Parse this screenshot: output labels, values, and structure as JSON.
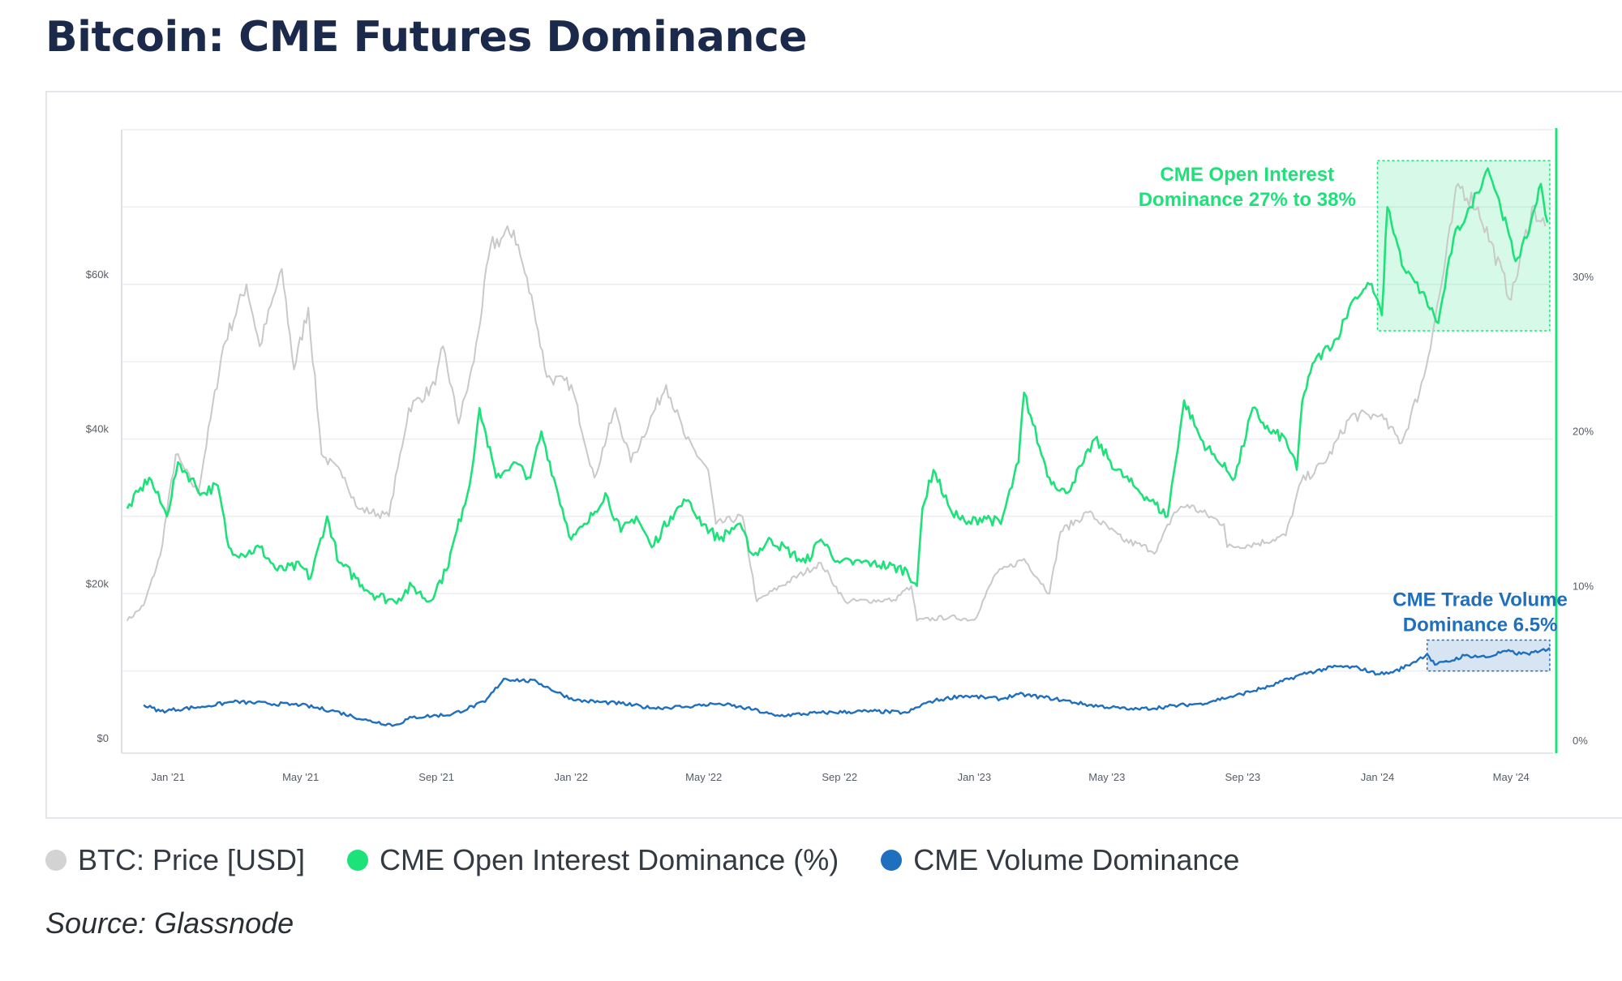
{
  "title": "Bitcoin: CME Futures Dominance",
  "source": "Source: Glassnode",
  "colors": {
    "price": "#c9c9c9",
    "oi": "#1de27a",
    "vol": "#1f6fbf",
    "title": "#1b2a4a"
  },
  "chart_data": {
    "type": "line",
    "title": "Bitcoin: CME Futures Dominance",
    "x_tick_labels": [
      "Jan '21",
      "May '21",
      "Sep '21",
      "Jan '22",
      "May '22",
      "Sep '22",
      "Jan '23",
      "May '23",
      "Sep '23",
      "Jan '24",
      "May '24"
    ],
    "left_axis": {
      "tick_labels": [
        "$0",
        "$20k",
        "$40k",
        "$60k"
      ],
      "ylim": [
        0,
        80000
      ]
    },
    "right_axis": {
      "tick_labels": [
        "0%",
        "10%",
        "20%",
        "30%"
      ],
      "ylim": [
        0,
        40
      ]
    },
    "grid": true,
    "legend_position": "bottom-left",
    "series": [
      {
        "name": "BTC: Price [USD]",
        "axis": "left",
        "points": [
          [
            "2020-11-25",
            16500
          ],
          [
            "2020-12-10",
            18500
          ],
          [
            "2020-12-25",
            25000
          ],
          [
            "2021-01-08",
            38000
          ],
          [
            "2021-01-28",
            33000
          ],
          [
            "2021-02-20",
            52000
          ],
          [
            "2021-03-13",
            60000
          ],
          [
            "2021-03-25",
            52000
          ],
          [
            "2021-04-14",
            62000
          ],
          [
            "2021-04-25",
            49000
          ],
          [
            "2021-05-08",
            57000
          ],
          [
            "2021-05-20",
            38000
          ],
          [
            "2021-06-10",
            35000
          ],
          [
            "2021-06-22",
            31000
          ],
          [
            "2021-07-20",
            30000
          ],
          [
            "2021-08-07",
            44000
          ],
          [
            "2021-08-31",
            47000
          ],
          [
            "2021-09-07",
            52000
          ],
          [
            "2021-09-21",
            42000
          ],
          [
            "2021-10-05",
            50000
          ],
          [
            "2021-10-20",
            65000
          ],
          [
            "2021-11-10",
            67000
          ],
          [
            "2021-11-28",
            57000
          ],
          [
            "2021-12-10",
            48000
          ],
          [
            "2022-01-01",
            47000
          ],
          [
            "2022-01-22",
            35000
          ],
          [
            "2022-02-10",
            44000
          ],
          [
            "2022-02-24",
            37000
          ],
          [
            "2022-03-28",
            47000
          ],
          [
            "2022-04-15",
            40000
          ],
          [
            "2022-05-05",
            36000
          ],
          [
            "2022-05-12",
            29000
          ],
          [
            "2022-06-05",
            30000
          ],
          [
            "2022-06-18",
            19000
          ],
          [
            "2022-07-10",
            21000
          ],
          [
            "2022-08-15",
            24000
          ],
          [
            "2022-09-06",
            19000
          ],
          [
            "2022-10-20",
            19200
          ],
          [
            "2022-11-05",
            21000
          ],
          [
            "2022-11-10",
            16500
          ],
          [
            "2022-12-10",
            17000
          ],
          [
            "2023-01-01",
            16600
          ],
          [
            "2023-01-20",
            22500
          ],
          [
            "2023-02-15",
            24500
          ],
          [
            "2023-03-10",
            20000
          ],
          [
            "2023-03-20",
            28000
          ],
          [
            "2023-04-14",
            30500
          ],
          [
            "2023-05-15",
            27000
          ],
          [
            "2023-06-15",
            25500
          ],
          [
            "2023-07-01",
            30500
          ],
          [
            "2023-07-13",
            31500
          ],
          [
            "2023-08-15",
            29000
          ],
          [
            "2023-08-18",
            26000
          ],
          [
            "2023-09-15",
            26500
          ],
          [
            "2023-10-10",
            27500
          ],
          [
            "2023-10-24",
            34500
          ],
          [
            "2023-11-15",
            37000
          ],
          [
            "2023-12-08",
            43000
          ],
          [
            "2024-01-03",
            43000
          ],
          [
            "2024-01-23",
            39500
          ],
          [
            "2024-02-12",
            48000
          ],
          [
            "2024-02-28",
            60000
          ],
          [
            "2024-03-14",
            73000
          ],
          [
            "2024-04-01",
            70000
          ],
          [
            "2024-05-01",
            58000
          ],
          [
            "2024-05-20",
            70000
          ],
          [
            "2024-06-01",
            67500
          ]
        ]
      },
      {
        "name": "CME Open Interest Dominance (%)",
        "axis": "right",
        "points": [
          [
            "2020-11-25",
            15.5
          ],
          [
            "2020-12-15",
            17.5
          ],
          [
            "2020-12-31",
            15
          ],
          [
            "2021-01-10",
            18.5
          ],
          [
            "2021-02-01",
            16.5
          ],
          [
            "2021-02-15",
            17
          ],
          [
            "2021-02-25",
            13
          ],
          [
            "2021-03-10",
            12.5
          ],
          [
            "2021-03-25",
            13
          ],
          [
            "2021-04-10",
            11.5
          ],
          [
            "2021-05-01",
            11.8
          ],
          [
            "2021-05-10",
            11
          ],
          [
            "2021-05-25",
            15
          ],
          [
            "2021-06-05",
            12
          ],
          [
            "2021-06-20",
            11
          ],
          [
            "2021-07-05",
            10
          ],
          [
            "2021-07-25",
            9.5
          ],
          [
            "2021-08-10",
            10.5
          ],
          [
            "2021-08-25",
            9.5
          ],
          [
            "2021-09-10",
            11.5
          ],
          [
            "2021-09-25",
            15.5
          ],
          [
            "2021-10-01",
            17
          ],
          [
            "2021-10-10",
            22
          ],
          [
            "2021-10-25",
            17.5
          ],
          [
            "2021-11-10",
            18.5
          ],
          [
            "2021-11-25",
            17.5
          ],
          [
            "2021-12-05",
            20.5
          ],
          [
            "2021-12-20",
            16.5
          ],
          [
            "2022-01-01",
            13.5
          ],
          [
            "2022-01-15",
            14.5
          ],
          [
            "2022-02-01",
            16.5
          ],
          [
            "2022-02-15",
            14
          ],
          [
            "2022-03-01",
            15
          ],
          [
            "2022-03-15",
            13
          ],
          [
            "2022-04-01",
            15
          ],
          [
            "2022-04-15",
            16
          ],
          [
            "2022-05-01",
            14.5
          ],
          [
            "2022-05-15",
            13.5
          ],
          [
            "2022-06-01",
            14.5
          ],
          [
            "2022-06-15",
            12.5
          ],
          [
            "2022-07-01",
            13.5
          ],
          [
            "2022-08-01",
            12
          ],
          [
            "2022-08-15",
            13.5
          ],
          [
            "2022-09-01",
            12
          ],
          [
            "2022-10-01",
            12
          ],
          [
            "2022-11-01",
            11.5
          ],
          [
            "2022-11-10",
            10.5
          ],
          [
            "2022-11-15",
            15.5
          ],
          [
            "2022-11-25",
            18
          ],
          [
            "2022-12-10",
            15.5
          ],
          [
            "2022-12-25",
            14.5
          ],
          [
            "2023-01-10",
            15
          ],
          [
            "2023-01-25",
            14.5
          ],
          [
            "2023-02-10",
            18.5
          ],
          [
            "2023-02-15",
            23
          ],
          [
            "2023-03-01",
            19.5
          ],
          [
            "2023-03-10",
            17.5
          ],
          [
            "2023-03-25",
            16.5
          ],
          [
            "2023-04-10",
            18.5
          ],
          [
            "2023-04-20",
            20
          ],
          [
            "2023-05-10",
            18
          ],
          [
            "2023-05-25",
            17
          ],
          [
            "2023-06-10",
            16
          ],
          [
            "2023-06-25",
            15
          ],
          [
            "2023-07-10",
            22.5
          ],
          [
            "2023-07-25",
            20
          ],
          [
            "2023-08-10",
            18.5
          ],
          [
            "2023-08-25",
            17.5
          ],
          [
            "2023-09-10",
            22
          ],
          [
            "2023-09-25",
            20.5
          ],
          [
            "2023-10-10",
            20
          ],
          [
            "2023-10-20",
            18
          ],
          [
            "2023-10-25",
            22.5
          ],
          [
            "2023-11-05",
            25
          ],
          [
            "2023-11-25",
            26.5
          ],
          [
            "2023-12-10",
            29
          ],
          [
            "2023-12-25",
            30
          ],
          [
            "2024-01-01",
            29
          ],
          [
            "2024-01-05",
            28
          ],
          [
            "2024-01-10",
            35
          ],
          [
            "2024-01-25",
            31
          ],
          [
            "2024-02-10",
            29.5
          ],
          [
            "2024-02-25",
            27.5
          ],
          [
            "2024-03-10",
            33
          ],
          [
            "2024-03-25",
            35
          ],
          [
            "2024-04-10",
            37.5
          ],
          [
            "2024-04-20",
            35.5
          ],
          [
            "2024-05-05",
            31.5
          ],
          [
            "2024-05-15",
            33
          ],
          [
            "2024-05-28",
            36.5
          ],
          [
            "2024-06-03",
            34
          ]
        ]
      },
      {
        "name": "CME Volume Dominance",
        "axis": "right",
        "points": [
          [
            "2020-12-10",
            2.8
          ],
          [
            "2020-12-25",
            2.4
          ],
          [
            "2021-02-01",
            2.7
          ],
          [
            "2021-03-01",
            3.0
          ],
          [
            "2021-04-01",
            2.9
          ],
          [
            "2021-05-01",
            2.8
          ],
          [
            "2021-06-01",
            2.4
          ],
          [
            "2021-07-01",
            1.8
          ],
          [
            "2021-07-25",
            1.5
          ],
          [
            "2021-08-10",
            2.0
          ],
          [
            "2021-09-15",
            2.2
          ],
          [
            "2021-10-15",
            3.0
          ],
          [
            "2021-11-01",
            4.5
          ],
          [
            "2021-12-01",
            4.3
          ],
          [
            "2021-12-20",
            3.6
          ],
          [
            "2022-01-05",
            3.1
          ],
          [
            "2022-02-15",
            2.9
          ],
          [
            "2022-03-15",
            2.6
          ],
          [
            "2022-04-15",
            2.7
          ],
          [
            "2022-05-15",
            2.9
          ],
          [
            "2022-06-15",
            2.5
          ],
          [
            "2022-07-05",
            2.1
          ],
          [
            "2022-08-15",
            2.3
          ],
          [
            "2022-10-01",
            2.4
          ],
          [
            "2022-11-01",
            2.3
          ],
          [
            "2022-11-20",
            3.0
          ],
          [
            "2022-12-20",
            3.4
          ],
          [
            "2023-01-25",
            3.2
          ],
          [
            "2023-02-10",
            3.5
          ],
          [
            "2023-03-15",
            3.2
          ],
          [
            "2023-04-15",
            2.8
          ],
          [
            "2023-05-25",
            2.5
          ],
          [
            "2023-06-25",
            2.7
          ],
          [
            "2023-07-25",
            2.9
          ],
          [
            "2023-08-25",
            3.4
          ],
          [
            "2023-09-25",
            4.0
          ],
          [
            "2023-10-25",
            4.8
          ],
          [
            "2023-11-25",
            5.3
          ],
          [
            "2023-12-15",
            5.2
          ],
          [
            "2024-01-01",
            4.8
          ],
          [
            "2024-01-15",
            4.9
          ],
          [
            "2024-02-01",
            5.5
          ],
          [
            "2024-02-15",
            6.1
          ],
          [
            "2024-02-22",
            5.4
          ],
          [
            "2024-03-05",
            5.6
          ],
          [
            "2024-03-20",
            6.0
          ],
          [
            "2024-04-10",
            5.9
          ],
          [
            "2024-04-25",
            6.3
          ],
          [
            "2024-05-10",
            6.1
          ],
          [
            "2024-05-25",
            6.2
          ],
          [
            "2024-06-05",
            6.5
          ]
        ]
      }
    ],
    "annotations": [
      {
        "text_lines": [
          "CME Open Interest",
          "Dominance 27% to 38%"
        ],
        "box": {
          "x_range": [
            "2024-01-01",
            "2024-06-05"
          ],
          "y_range": [
            27,
            38
          ],
          "axis": "right"
        }
      },
      {
        "text_lines": [
          "CME Trade Volume",
          "Dominance 6.5%"
        ],
        "box": {
          "x_range": [
            "2024-02-15",
            "2024-06-05"
          ],
          "y_range": [
            5.0,
            7.0
          ],
          "axis": "right"
        }
      }
    ]
  }
}
